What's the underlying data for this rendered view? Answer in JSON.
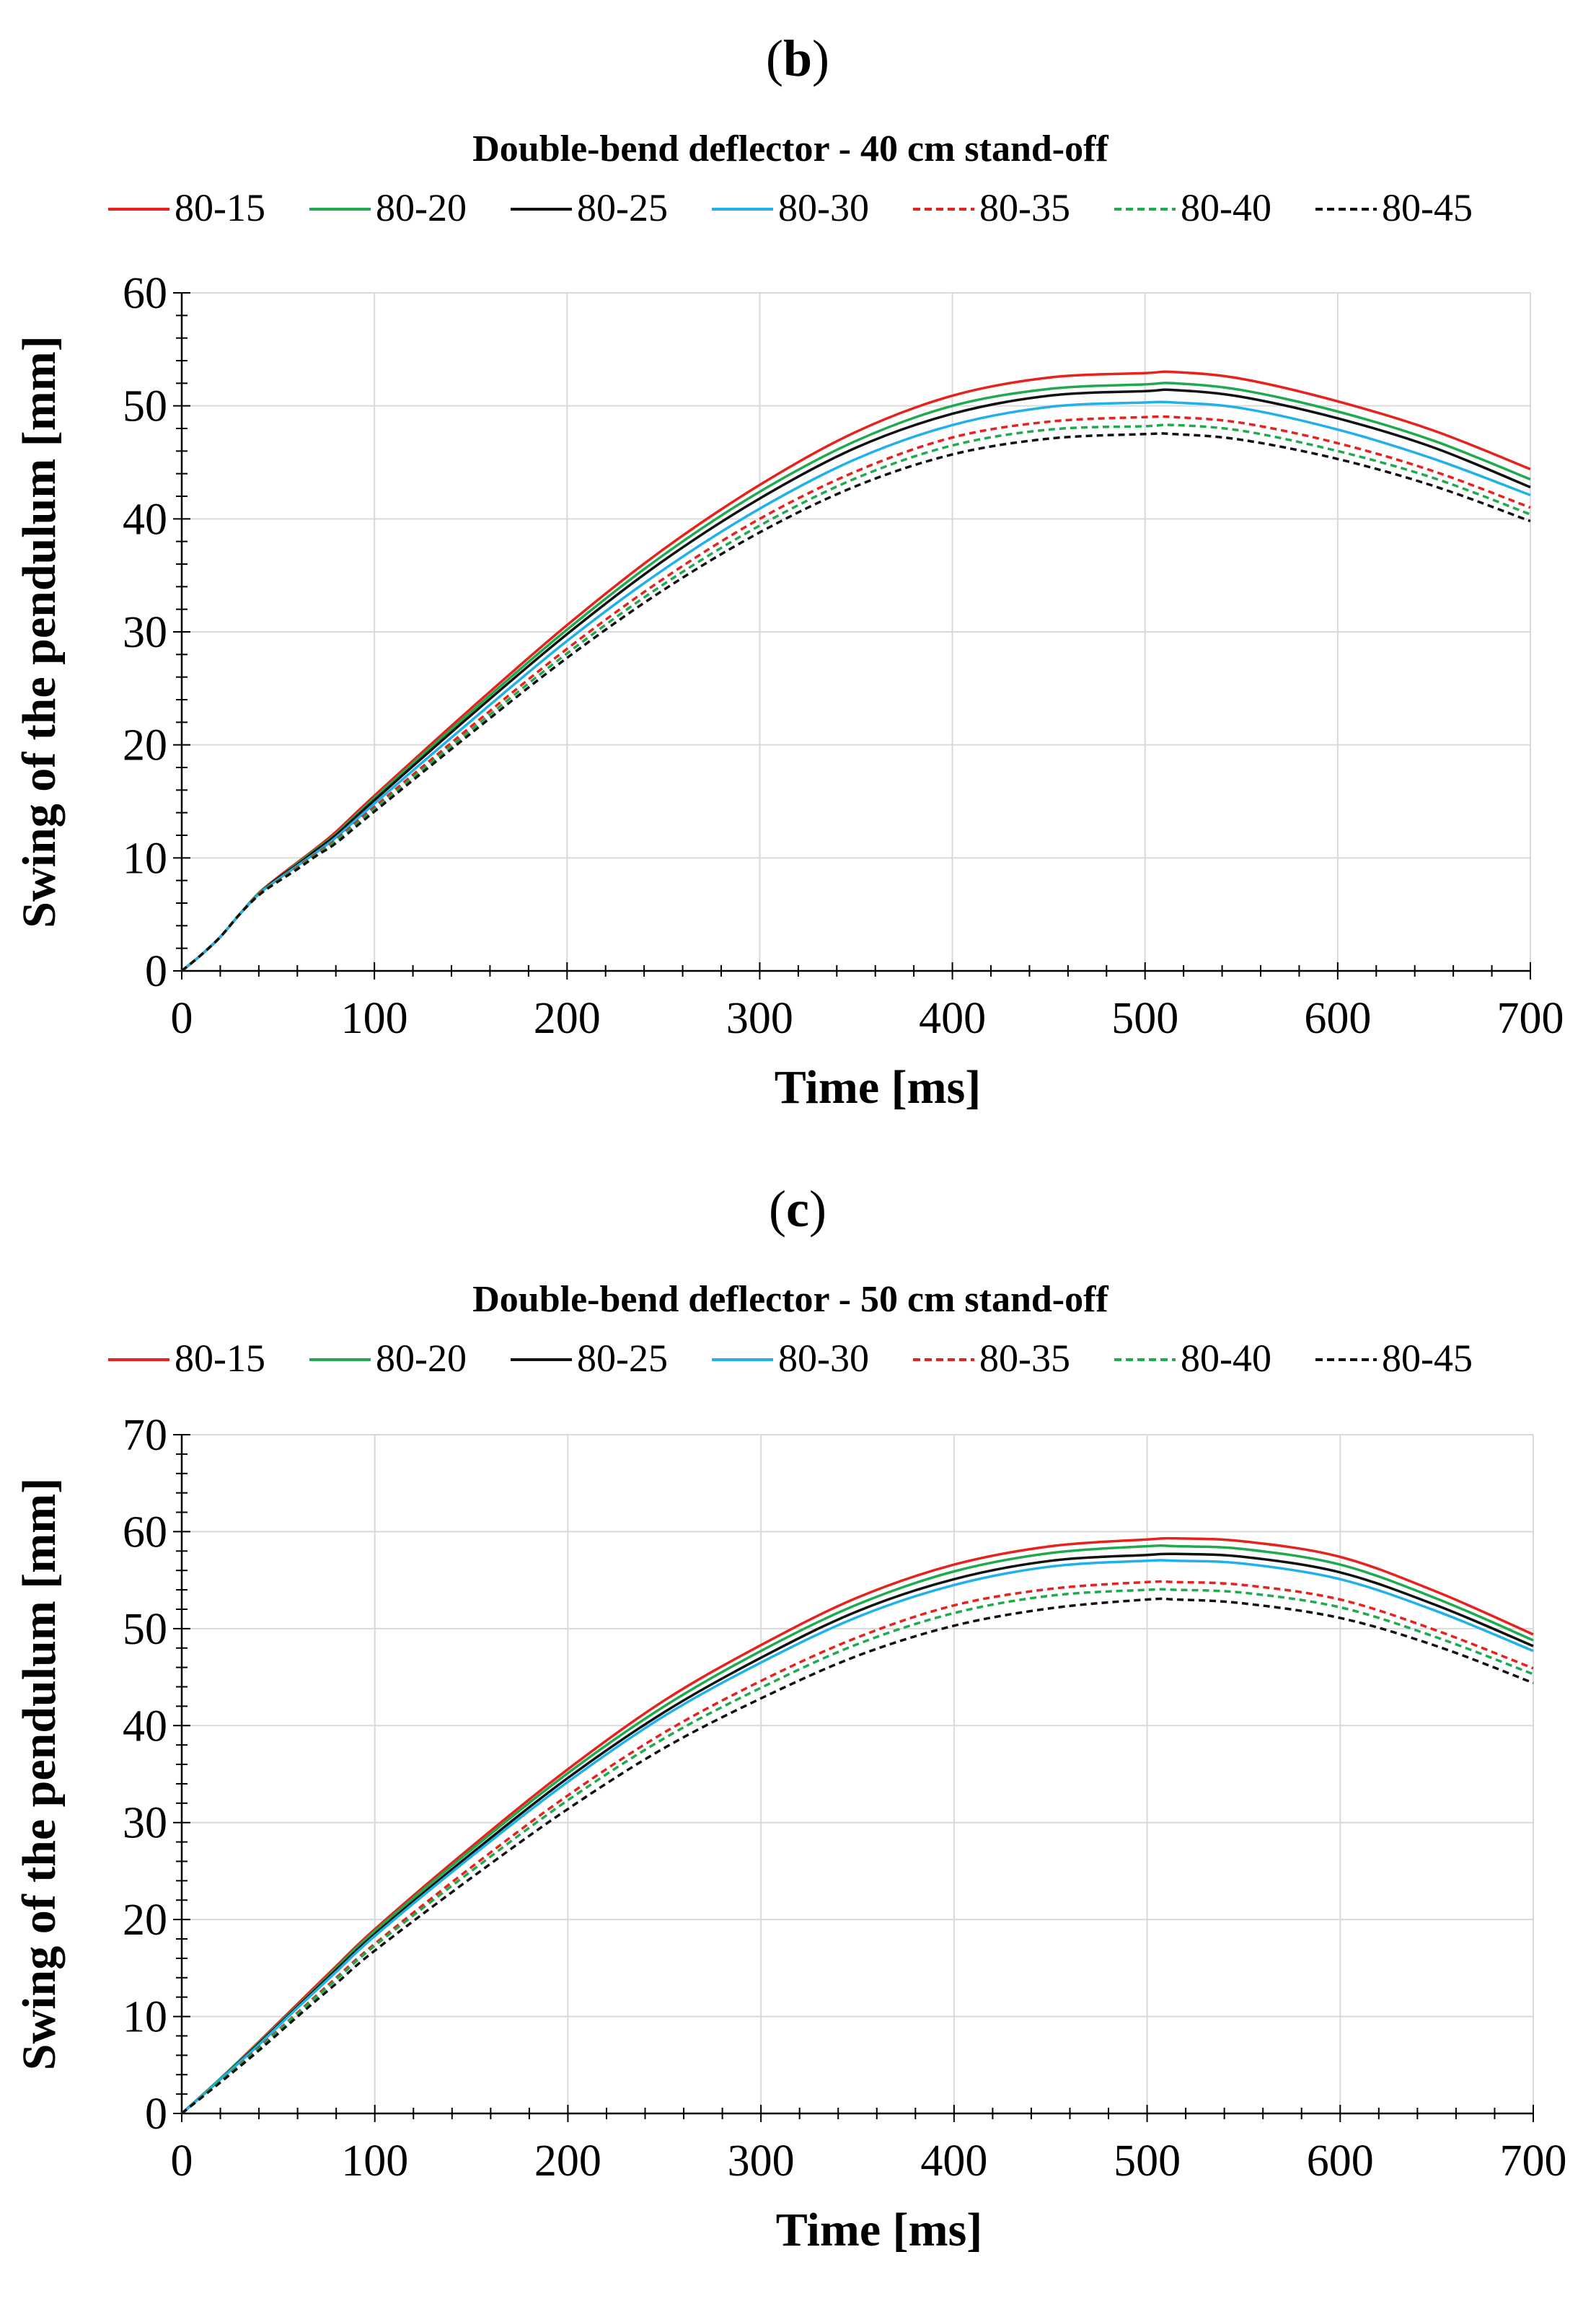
{
  "chart_data": [
    {
      "panel_label": "(b)",
      "panel_letter": "b",
      "type": "line",
      "title": "Double-bend deflector - 40 cm stand-off",
      "xlabel": "Time [ms]",
      "ylabel": "Swing of the pendulum [mm]",
      "xlim": [
        0,
        700
      ],
      "ylim": [
        0,
        60
      ],
      "xticks": [
        0,
        100,
        200,
        300,
        400,
        500,
        600,
        700
      ],
      "yticks": [
        0,
        10,
        20,
        30,
        40,
        50,
        60
      ],
      "grid": true,
      "legend_position": "top",
      "x": [
        0,
        10,
        20,
        30,
        40,
        50,
        60,
        70,
        80,
        100,
        150,
        200,
        250,
        300,
        350,
        400,
        450,
        500,
        515,
        550,
        600,
        650,
        700
      ],
      "series": [
        {
          "name": "80-15",
          "color": "#e8211c",
          "dash": "solid",
          "values": [
            0,
            1.4,
            3.0,
            5.0,
            6.9,
            8.3,
            9.6,
            10.9,
            12.3,
            15.5,
            23.2,
            30.6,
            37.3,
            43.0,
            47.7,
            50.9,
            52.5,
            52.9,
            53.0,
            52.4,
            50.4,
            47.8,
            44.4
          ]
        },
        {
          "name": "80-20",
          "color": "#1faa4e",
          "dash": "solid",
          "values": [
            0,
            1.4,
            3.0,
            5.0,
            6.9,
            8.2,
            9.5,
            10.8,
            12.1,
            15.3,
            22.9,
            30.2,
            36.8,
            42.4,
            46.9,
            50.0,
            51.5,
            51.9,
            52.0,
            51.4,
            49.5,
            46.9,
            43.5
          ]
        },
        {
          "name": "80-25",
          "color": "#111111",
          "dash": "solid",
          "values": [
            0,
            1.4,
            3.0,
            5.0,
            6.8,
            8.2,
            9.4,
            10.7,
            12.0,
            15.1,
            22.6,
            29.8,
            36.3,
            41.8,
            46.3,
            49.3,
            50.9,
            51.3,
            51.4,
            50.8,
            48.9,
            46.3,
            42.8
          ]
        },
        {
          "name": "80-30",
          "color": "#1fb1ea",
          "dash": "solid",
          "values": [
            0,
            1.4,
            3.0,
            5.0,
            6.8,
            8.1,
            9.3,
            10.5,
            11.8,
            14.8,
            22.1,
            29.2,
            35.5,
            40.9,
            45.3,
            48.3,
            49.9,
            50.3,
            50.3,
            49.8,
            47.9,
            45.3,
            42.1
          ]
        },
        {
          "name": "80-35",
          "color": "#e8211c",
          "dash": "dashed",
          "values": [
            0,
            1.4,
            3.0,
            5.0,
            6.8,
            8.0,
            9.2,
            10.4,
            11.6,
            14.5,
            21.6,
            28.5,
            34.7,
            40.0,
            44.2,
            47.2,
            48.6,
            49.0,
            49.0,
            48.5,
            46.7,
            44.2,
            41.0
          ]
        },
        {
          "name": "80-40",
          "color": "#1faa4e",
          "dash": "dashed",
          "values": [
            0,
            1.4,
            3.0,
            5.0,
            6.7,
            8.0,
            9.1,
            10.3,
            11.5,
            14.3,
            21.3,
            28.1,
            34.2,
            39.4,
            43.6,
            46.5,
            47.9,
            48.2,
            48.3,
            47.8,
            46.0,
            43.6,
            40.4
          ]
        },
        {
          "name": "80-45",
          "color": "#111111",
          "dash": "dashed",
          "values": [
            0,
            1.4,
            3.0,
            5.0,
            6.7,
            7.9,
            9.0,
            10.2,
            11.3,
            14.1,
            21.0,
            27.7,
            33.7,
            38.8,
            42.9,
            45.7,
            47.1,
            47.5,
            47.5,
            47.0,
            45.3,
            42.9,
            39.8
          ]
        }
      ]
    },
    {
      "panel_label": "(c)",
      "panel_letter": "c",
      "type": "line",
      "title": "Double-bend deflector - 50 cm stand-off",
      "xlabel": "Time [ms]",
      "ylabel": "Swing of the pendulum [mm]",
      "xlim": [
        0,
        700
      ],
      "ylim": [
        0,
        70
      ],
      "xticks": [
        0,
        100,
        200,
        300,
        400,
        500,
        600,
        700
      ],
      "yticks": [
        0,
        10,
        20,
        30,
        40,
        50,
        60,
        70
      ],
      "grid": true,
      "legend_position": "top",
      "x": [
        0,
        20,
        40,
        60,
        80,
        100,
        150,
        200,
        250,
        300,
        350,
        400,
        450,
        500,
        515,
        550,
        600,
        650,
        700
      ],
      "series": [
        {
          "name": "80-15",
          "color": "#e8211c",
          "dash": "solid",
          "values": [
            0,
            3.6,
            7.4,
            11.3,
            15.2,
            19.0,
            27.5,
            35.5,
            42.6,
            48.3,
            53.2,
            56.6,
            58.5,
            59.2,
            59.3,
            59.0,
            57.4,
            53.8,
            49.4
          ]
        },
        {
          "name": "80-20",
          "color": "#1faa4e",
          "dash": "solid",
          "values": [
            0,
            3.6,
            7.3,
            11.1,
            15.0,
            18.8,
            27.2,
            35.1,
            42.0,
            47.7,
            52.5,
            55.9,
            57.8,
            58.5,
            58.5,
            58.2,
            56.6,
            53.1,
            48.8
          ]
        },
        {
          "name": "80-25",
          "color": "#111111",
          "dash": "solid",
          "values": [
            0,
            3.5,
            7.2,
            11.0,
            14.8,
            18.5,
            26.8,
            34.6,
            41.4,
            47.0,
            51.8,
            55.1,
            57.0,
            57.6,
            57.7,
            57.4,
            55.8,
            52.4,
            48.2
          ]
        },
        {
          "name": "80-30",
          "color": "#1fb1ea",
          "dash": "solid",
          "values": [
            0,
            3.5,
            7.1,
            10.9,
            14.6,
            18.3,
            26.5,
            34.2,
            41.0,
            46.5,
            51.2,
            54.5,
            56.4,
            57.0,
            57.0,
            56.7,
            55.1,
            51.8,
            47.7
          ]
        },
        {
          "name": "80-35",
          "color": "#e8211c",
          "dash": "dashed",
          "values": [
            0,
            3.3,
            6.8,
            10.4,
            14.0,
            17.5,
            25.4,
            32.8,
            39.3,
            44.6,
            49.1,
            52.4,
            54.1,
            54.8,
            54.8,
            54.5,
            53.0,
            49.8,
            45.9
          ]
        },
        {
          "name": "80-40",
          "color": "#1faa4e",
          "dash": "dashed",
          "values": [
            0,
            3.3,
            6.7,
            10.3,
            13.8,
            17.3,
            25.0,
            32.3,
            38.7,
            43.9,
            48.4,
            51.6,
            53.4,
            54.0,
            54.0,
            53.7,
            52.2,
            49.1,
            45.3
          ]
        },
        {
          "name": "80-45",
          "color": "#111111",
          "dash": "dashed",
          "values": [
            0,
            3.2,
            6.5,
            10.0,
            13.4,
            16.8,
            24.3,
            31.4,
            37.7,
            42.8,
            47.2,
            50.3,
            52.1,
            53.0,
            53.0,
            52.6,
            51.1,
            48.2,
            44.4
          ]
        }
      ]
    }
  ]
}
